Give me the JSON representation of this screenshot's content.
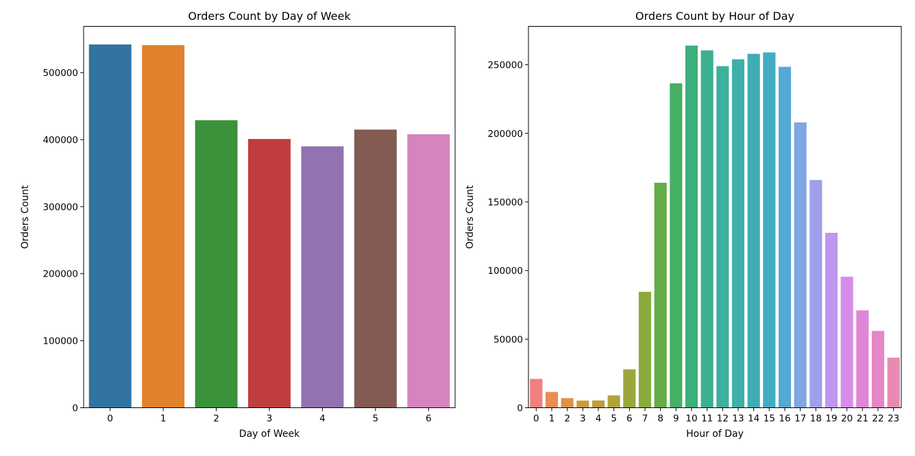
{
  "chart_data": [
    {
      "type": "bar",
      "title": "Orders Count by Day of Week",
      "xlabel": "Day of Week",
      "ylabel": "Orders Count",
      "categories": [
        "0",
        "1",
        "2",
        "3",
        "4",
        "5",
        "6"
      ],
      "values": [
        542000,
        541000,
        429000,
        401000,
        390000,
        415000,
        408000
      ],
      "ylim": [
        0,
        569000
      ],
      "yticks": [
        0,
        100000,
        200000,
        300000,
        400000,
        500000
      ],
      "ytick_labels": [
        "0",
        "100000",
        "200000",
        "300000",
        "400000",
        "500000"
      ],
      "colors": [
        "#3274a1",
        "#e1812c",
        "#3a923a",
        "#c03d3e",
        "#9372b2",
        "#845b53",
        "#d684bd"
      ],
      "grid": false,
      "legend": "none"
    },
    {
      "type": "bar",
      "title": "Orders Count by Hour of Day",
      "xlabel": "Hour of Day",
      "ylabel": "Orders Count",
      "categories": [
        "0",
        "1",
        "2",
        "3",
        "4",
        "5",
        "6",
        "7",
        "8",
        "9",
        "10",
        "11",
        "12",
        "13",
        "14",
        "15",
        "16",
        "17",
        "18",
        "19",
        "20",
        "21",
        "22",
        "23"
      ],
      "values": [
        21000,
        11500,
        7000,
        5200,
        5300,
        9000,
        28000,
        84500,
        164000,
        236500,
        264000,
        260500,
        249000,
        254000,
        258000,
        259000,
        248500,
        208000,
        166000,
        127500,
        95500,
        71000,
        56000,
        36500
      ],
      "ylim": [
        0,
        278000
      ],
      "yticks": [
        0,
        50000,
        100000,
        150000,
        200000,
        250000
      ],
      "ytick_labels": [
        "0",
        "50000",
        "100000",
        "150000",
        "200000",
        "250000"
      ],
      "colors": [
        "#f07f7d",
        "#e98c56",
        "#e0914a",
        "#cf9a3c",
        "#bf9e3a",
        "#b0a43b",
        "#9ba73b",
        "#8aab3b",
        "#64ad49",
        "#45b064",
        "#3cb07c",
        "#3db08f",
        "#3eb09d",
        "#3fafaa",
        "#3fadb6",
        "#42abc4",
        "#55a9d6",
        "#80a6e3",
        "#9fa0eb",
        "#bf97ec",
        "#d68ce8",
        "#e086d8",
        "#e687c7",
        "#ea8ab4"
      ],
      "grid": false,
      "legend": "none"
    }
  ]
}
